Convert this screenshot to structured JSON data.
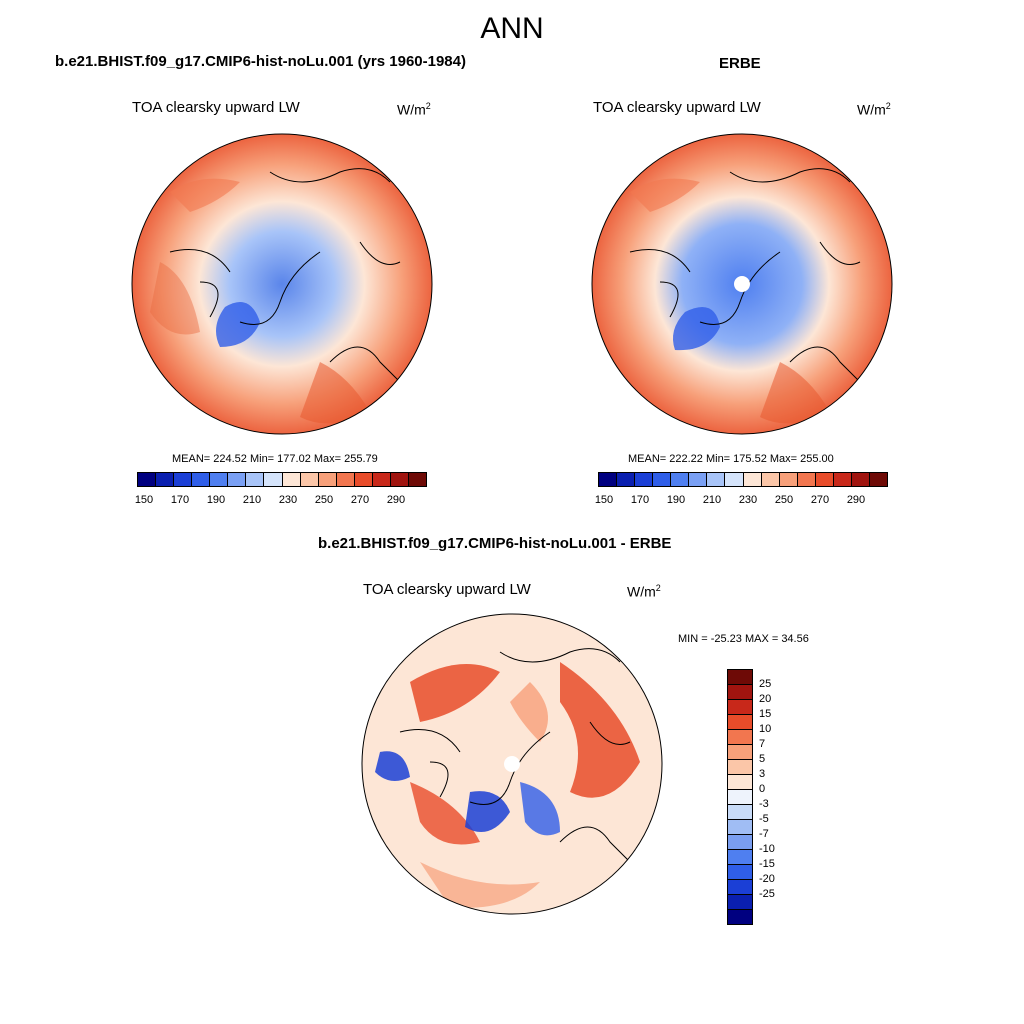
{
  "main_title": "ANN",
  "panels": [
    {
      "case_title": "b.e21.BHIST.f09_g17.CMIP6-hist-noLu.001 (yrs 1960-1984)",
      "variable": "TOA clearsky upward LW",
      "units_base": "W/m",
      "units_exp": "2",
      "stats": "MEAN= 224.52  Min= 177.02  Max= 255.79"
    },
    {
      "case_title": "ERBE",
      "variable": "TOA clearsky upward LW",
      "units_base": "W/m",
      "units_exp": "2",
      "stats": "MEAN= 222.22  Min= 175.52  Max= 255.00"
    },
    {
      "case_title": "b.e21.BHIST.f09_g17.CMIP6-hist-noLu.001 - ERBE",
      "variable": "TOA clearsky upward LW",
      "units_base": "W/m",
      "units_exp": "2",
      "stats": "MIN = -25.23 MAX =  34.56"
    }
  ],
  "abs_colorbar": {
    "colors": [
      "#000080",
      "#0a1fb0",
      "#1b3fd6",
      "#2f5ee8",
      "#4f7ff0",
      "#7aa0f4",
      "#a8c4f8",
      "#d5e4fb",
      "#fde6d6",
      "#fbc6a8",
      "#f7a07a",
      "#f2764f",
      "#e84c2a",
      "#c8281a",
      "#a0140f",
      "#6e0a06"
    ],
    "tick_labels": [
      "150",
      "170",
      "190",
      "210",
      "230",
      "250",
      "270",
      "290"
    ]
  },
  "diff_colorbar": {
    "colors": [
      "#6e0a06",
      "#a0140f",
      "#c8281a",
      "#e84c2a",
      "#f2764f",
      "#f7a07a",
      "#fbc6a8",
      "#fde6d6",
      "#eef3fc",
      "#c8dbf8",
      "#a0bdf4",
      "#7a9ef0",
      "#4f7ff0",
      "#2f5ee8",
      "#1b3fd6",
      "#0a1fb0",
      "#000080"
    ],
    "tick_labels": [
      "25",
      "20",
      "15",
      "10",
      "7",
      "5",
      "3",
      "0",
      "-3",
      "-5",
      "-7",
      "-10",
      "-15",
      "-20",
      "-25"
    ]
  }
}
